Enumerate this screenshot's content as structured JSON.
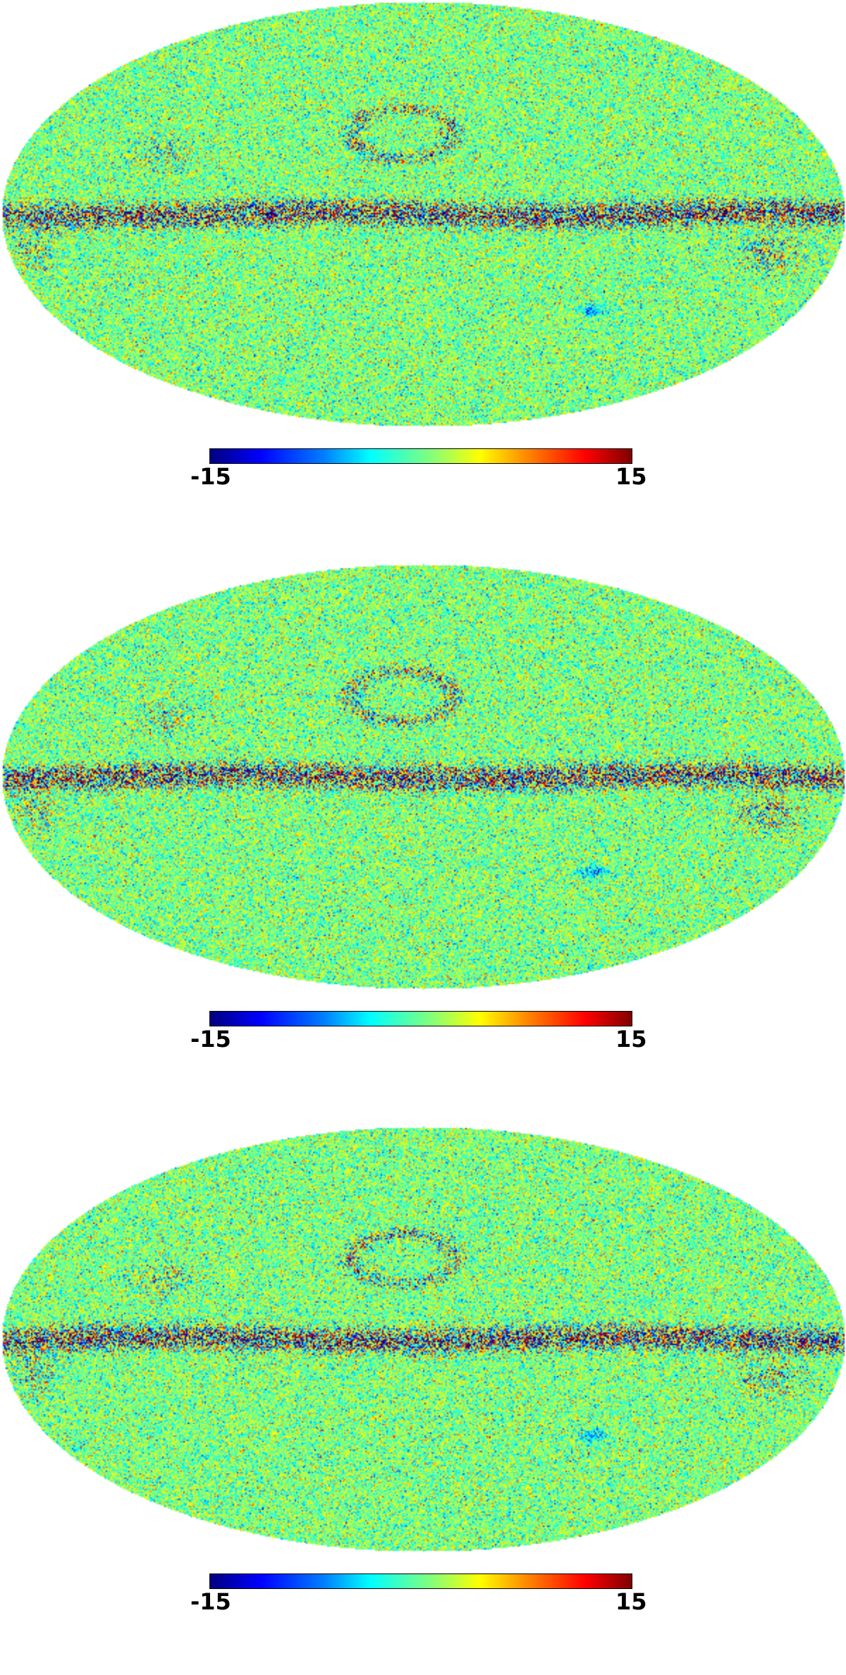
{
  "chart_data": [
    {
      "type": "heatmap",
      "projection": "mollweide",
      "colormap": "jet",
      "colorbar": {
        "min": -15,
        "max": 15,
        "min_label": "-15",
        "max_label": "15",
        "placement": "bottom"
      },
      "features": [
        "noise-dominated full-sky map",
        "strong galactic plane emission band",
        "north polar spur",
        "faint Gould belt/Orion structures"
      ],
      "seed": 11
    },
    {
      "type": "heatmap",
      "projection": "mollweide",
      "colormap": "jet",
      "colorbar": {
        "min": -15,
        "max": 15,
        "min_label": "-15",
        "max_label": "15",
        "placement": "bottom"
      },
      "features": [
        "noise-dominated full-sky map",
        "strong galactic plane emission band",
        "north polar spur",
        "faint Gould belt/Orion structures"
      ],
      "seed": 23
    },
    {
      "type": "heatmap",
      "projection": "mollweide",
      "colormap": "jet",
      "colorbar": {
        "min": -15,
        "max": 15,
        "min_label": "-15",
        "max_label": "15",
        "placement": "bottom"
      },
      "features": [
        "noise-dominated full-sky map",
        "strong galactic plane emission band",
        "north polar spur",
        "faint Gould belt/Orion structures"
      ],
      "seed": 37
    }
  ]
}
